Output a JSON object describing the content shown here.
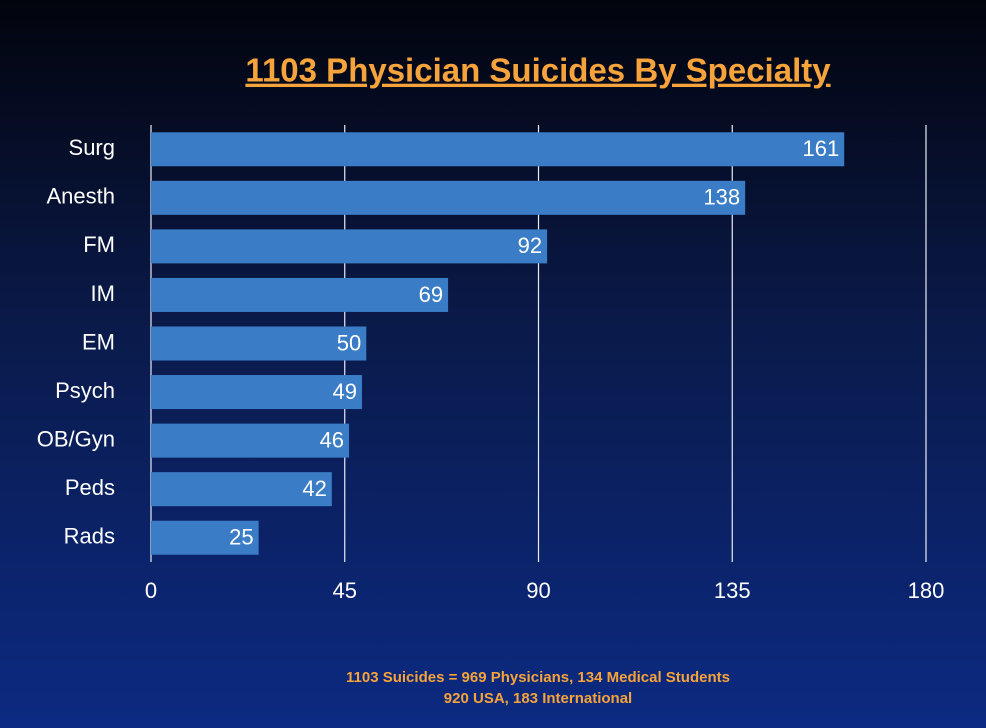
{
  "chart_data": {
    "type": "bar",
    "orientation": "horizontal",
    "title": "1103 Physician Suicides By Specialty",
    "categories": [
      "Surg",
      "Anesth",
      "FM",
      "IM",
      "EM",
      "Psych",
      "OB/Gyn",
      "Peds",
      "Rads"
    ],
    "values": [
      161,
      138,
      92,
      69,
      50,
      49,
      46,
      42,
      25
    ],
    "color": "#3a7dc6",
    "xlim": [
      0,
      180
    ],
    "xticks": [
      0,
      45,
      90,
      135,
      180
    ],
    "grid": true,
    "notes": [
      "1103 Suicides = 969 Physicians, 134 Medical Students",
      "920 USA, 183 International"
    ]
  }
}
